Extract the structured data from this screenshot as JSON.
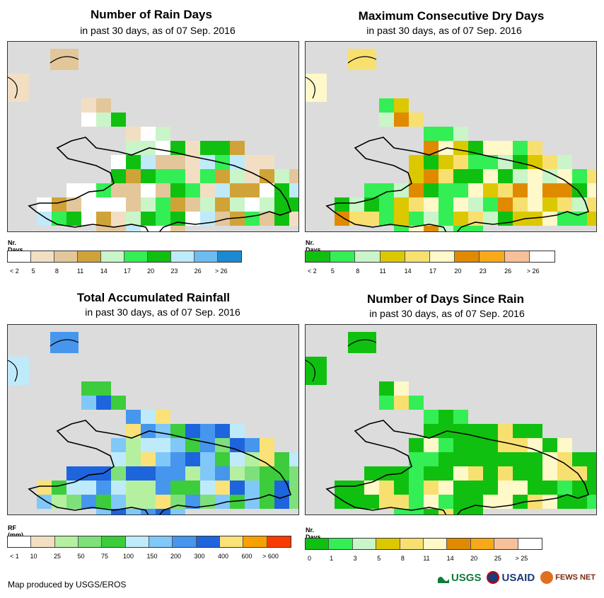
{
  "panels": [
    {
      "title": "Number of Rain Days",
      "subtitle": "in past 30 days, as of 07 Sep. 2016",
      "legend_title": "Nr. Days",
      "legend_colors": [
        "#ffffff",
        "#f2dfc3",
        "#e3c79a",
        "#d0a338",
        "#c9f5c9",
        "#33ee55",
        "#10c010",
        "#bfeafa",
        "#6cbcf2",
        "#1c8ad2"
      ],
      "legend_labels": [
        "< 2",
        "5",
        "8",
        "11",
        "14",
        "17",
        "20",
        "23",
        "26",
        "> 26"
      ],
      "fill_palette": [
        "#d0a338",
        "#e3c79a",
        "#f2dfc3",
        "#c9f5c9",
        "#33ee55",
        "#10c010",
        "#bfeafa",
        "#ffffff"
      ]
    },
    {
      "title": "Maximum Consecutive Dry Days",
      "subtitle": "in past 30 days, as of 07 Sep. 2016",
      "legend_title": "Nr. Days",
      "legend_colors": [
        "#10c010",
        "#33ee55",
        "#c9f5c9",
        "#dcc800",
        "#f8e070",
        "#fff8c8",
        "#e08a00",
        "#f8a818",
        "#f8c098",
        "#ffffff"
      ],
      "legend_labels": [
        "< 2",
        "5",
        "8",
        "11",
        "14",
        "17",
        "20",
        "23",
        "26",
        "> 26"
      ],
      "fill_palette": [
        "#dcc800",
        "#f8e070",
        "#fff8c8",
        "#c9f5c9",
        "#33ee55",
        "#10c010",
        "#e08a00"
      ]
    },
    {
      "title": "Total Accumulated Rainfall",
      "subtitle": "in past 30 days, as of 07 Sep. 2016",
      "legend_title": "RF (mm)",
      "legend_colors": [
        "#ffffff",
        "#f2dfc3",
        "#b4f0a0",
        "#7ee07a",
        "#3ccc3c",
        "#bfeafa",
        "#80c8f8",
        "#4696ee",
        "#1e64dc",
        "#fae278",
        "#f8a000",
        "#f83c00"
      ],
      "legend_labels": [
        "< 1",
        "10",
        "25",
        "50",
        "75",
        "100",
        "150",
        "200",
        "300",
        "400",
        "600",
        "> 600"
      ],
      "fill_palette": [
        "#80c8f8",
        "#4696ee",
        "#bfeafa",
        "#1e64dc",
        "#fae278",
        "#b4f0a0",
        "#7ee07a",
        "#3ccc3c"
      ]
    },
    {
      "title": "Number of Days Since Rain",
      "subtitle": "in past 30 days, as of 07 Sep. 2016",
      "legend_title": "Nr. Days",
      "legend_colors": [
        "#10c010",
        "#33ee55",
        "#c9f5c9",
        "#dcc800",
        "#f8e070",
        "#fff8c8",
        "#e08a00",
        "#f8a818",
        "#f8c098",
        "#ffffff"
      ],
      "legend_labels": [
        "0",
        "1",
        "3",
        "5",
        "8",
        "11",
        "14",
        "20",
        "25",
        "> 25"
      ],
      "fill_palette": [
        "#10c010",
        "#10c010",
        "#10c010",
        "#33ee55",
        "#fff8c8",
        "#f8e070"
      ]
    }
  ],
  "footer": "Map produced by USGS/EROS",
  "logos": {
    "usgs": "USGS",
    "usaid": "USAID",
    "fewsnet": "FEWS NET"
  },
  "colors": {
    "map_bg": "#dcdcdc",
    "outline": "#000000"
  }
}
